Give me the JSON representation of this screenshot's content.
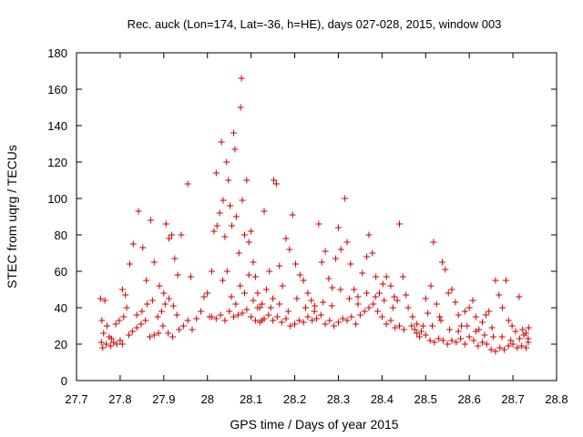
{
  "chart_data": {
    "type": "scatter",
    "title": "Rec. auck (Lon=174, Lat=-36, h=HE), days 027-028, 2015, window 003",
    "xlabel": "GPS time / Days of year 2015",
    "ylabel": "STEC from uqrg / TECUs",
    "xlim": [
      27.7,
      28.8
    ],
    "ylim": [
      0,
      180
    ],
    "xticks": [
      "27.7",
      "27.8",
      "27.9",
      "28",
      "28.1",
      "28.2",
      "28.3",
      "28.4",
      "28.5",
      "28.6",
      "28.7",
      "28.8"
    ],
    "yticks": [
      "0",
      "20",
      "40",
      "60",
      "80",
      "100",
      "120",
      "140",
      "160",
      "180"
    ],
    "grid": false,
    "legend": "none",
    "marker": "+",
    "series": [
      {
        "name": "STEC",
        "color": "#cc0000",
        "points": [
          [
            27.755,
            45
          ],
          [
            27.765,
            44
          ],
          [
            27.758,
            33
          ],
          [
            27.77,
            30
          ],
          [
            27.762,
            26
          ],
          [
            27.775,
            24
          ],
          [
            27.78,
            23
          ],
          [
            27.757,
            21
          ],
          [
            27.768,
            20
          ],
          [
            27.76,
            18
          ],
          [
            27.778,
            19
          ],
          [
            27.785,
            21
          ],
          [
            27.792,
            20
          ],
          [
            27.8,
            22
          ],
          [
            27.805,
            20
          ],
          [
            27.79,
            31
          ],
          [
            27.798,
            33
          ],
          [
            27.808,
            35
          ],
          [
            27.815,
            40
          ],
          [
            27.805,
            50
          ],
          [
            27.812,
            47
          ],
          [
            27.822,
            64
          ],
          [
            27.83,
            75
          ],
          [
            27.842,
            93
          ],
          [
            27.852,
            73
          ],
          [
            27.86,
            55
          ],
          [
            27.87,
            88
          ],
          [
            27.878,
            65
          ],
          [
            27.89,
            52
          ],
          [
            27.9,
            48
          ],
          [
            27.905,
            86
          ],
          [
            27.912,
            78
          ],
          [
            27.918,
            80
          ],
          [
            27.925,
            67
          ],
          [
            27.932,
            58
          ],
          [
            27.94,
            80
          ],
          [
            27.955,
            108
          ],
          [
            27.962,
            57
          ],
          [
            27.82,
            25
          ],
          [
            27.828,
            27
          ],
          [
            27.838,
            29
          ],
          [
            27.848,
            31
          ],
          [
            27.858,
            33
          ],
          [
            27.868,
            24
          ],
          [
            27.878,
            25
          ],
          [
            27.888,
            26
          ],
          [
            27.895,
            38
          ],
          [
            27.903,
            42
          ],
          [
            27.912,
            45
          ],
          [
            27.922,
            41
          ],
          [
            27.93,
            36
          ],
          [
            27.945,
            30
          ],
          [
            27.955,
            33
          ],
          [
            27.965,
            28
          ],
          [
            27.975,
            34
          ],
          [
            27.985,
            38
          ],
          [
            27.992,
            46
          ],
          [
            27.838,
            36
          ],
          [
            27.85,
            38
          ],
          [
            27.862,
            42
          ],
          [
            27.874,
            44
          ],
          [
            27.886,
            35
          ],
          [
            27.898,
            30
          ],
          [
            27.91,
            26
          ],
          [
            27.92,
            24
          ],
          [
            27.935,
            28
          ],
          [
            28.0,
            48
          ],
          [
            28.005,
            35
          ],
          [
            28.01,
            60
          ],
          [
            28.015,
            82
          ],
          [
            28.02,
            114
          ],
          [
            28.022,
            85
          ],
          [
            28.028,
            92
          ],
          [
            28.032,
            131
          ],
          [
            28.036,
            99
          ],
          [
            28.04,
            79
          ],
          [
            28.044,
            120
          ],
          [
            28.048,
            110
          ],
          [
            28.052,
            96
          ],
          [
            28.056,
            85
          ],
          [
            28.06,
            136
          ],
          [
            28.063,
            127
          ],
          [
            28.066,
            90
          ],
          [
            28.072,
            70
          ],
          [
            28.076,
            150
          ],
          [
            28.078,
            166
          ],
          [
            28.08,
            99
          ],
          [
            28.085,
            80
          ],
          [
            28.09,
            110
          ],
          [
            28.095,
            76
          ],
          [
            28.1,
            82
          ],
          [
            28.105,
            65
          ],
          [
            28.11,
            57
          ],
          [
            28.115,
            48
          ],
          [
            28.12,
            40
          ],
          [
            28.125,
            33
          ],
          [
            28.13,
            93
          ],
          [
            28.135,
            50
          ],
          [
            28.142,
            60
          ],
          [
            28.15,
            45
          ],
          [
            28.152,
            110
          ],
          [
            28.158,
            108
          ],
          [
            28.165,
            63
          ],
          [
            28.172,
            52
          ],
          [
            28.18,
            78
          ],
          [
            28.188,
            72
          ],
          [
            28.195,
            91
          ],
          [
            28.202,
            64
          ],
          [
            28.212,
            58
          ],
          [
            28.22,
            55
          ],
          [
            28.23,
            48
          ],
          [
            28.238,
            44
          ],
          [
            28.246,
            41
          ],
          [
            28.255,
            86
          ],
          [
            28.262,
            65
          ],
          [
            28.27,
            71
          ],
          [
            28.278,
            56
          ],
          [
            28.286,
            51
          ],
          [
            28.294,
            67
          ],
          [
            28.3,
            84
          ],
          [
            28.306,
            72
          ],
          [
            28.315,
            100
          ],
          [
            28.32,
            76
          ],
          [
            28.328,
            64
          ],
          [
            28.336,
            50
          ],
          [
            28.345,
            46
          ],
          [
            28.355,
            59
          ],
          [
            28.365,
            68
          ],
          [
            28.37,
            80
          ],
          [
            28.378,
            70
          ],
          [
            28.386,
            57
          ],
          [
            28.394,
            48
          ],
          [
            28.402,
            53
          ],
          [
            28.41,
            57
          ],
          [
            28.42,
            52
          ],
          [
            28.428,
            46
          ],
          [
            28.435,
            44
          ],
          [
            28.44,
            86
          ],
          [
            28.448,
            57
          ],
          [
            28.455,
            47
          ],
          [
            28.01,
            35
          ],
          [
            28.02,
            34
          ],
          [
            28.03,
            36
          ],
          [
            28.04,
            33
          ],
          [
            28.05,
            38
          ],
          [
            28.06,
            35
          ],
          [
            28.07,
            36
          ],
          [
            28.08,
            37
          ],
          [
            28.09,
            39
          ],
          [
            28.1,
            35
          ],
          [
            28.11,
            33
          ],
          [
            28.12,
            32
          ],
          [
            28.13,
            34
          ],
          [
            28.14,
            36
          ],
          [
            28.15,
            33
          ],
          [
            28.16,
            35
          ],
          [
            28.17,
            32
          ],
          [
            28.18,
            34
          ],
          [
            28.19,
            30
          ],
          [
            28.2,
            31
          ],
          [
            28.21,
            33
          ],
          [
            28.22,
            32
          ],
          [
            28.23,
            35
          ],
          [
            28.24,
            33
          ],
          [
            28.25,
            34
          ],
          [
            28.26,
            36
          ],
          [
            28.27,
            31
          ],
          [
            28.28,
            33
          ],
          [
            28.29,
            30
          ],
          [
            28.3,
            32
          ],
          [
            28.31,
            34
          ],
          [
            28.32,
            33
          ],
          [
            28.33,
            35
          ],
          [
            28.34,
            31
          ],
          [
            28.35,
            36
          ],
          [
            28.36,
            38
          ],
          [
            28.37,
            40
          ],
          [
            28.38,
            42
          ],
          [
            28.39,
            38
          ],
          [
            28.4,
            35
          ],
          [
            28.41,
            31
          ],
          [
            28.42,
            33
          ],
          [
            28.43,
            29
          ],
          [
            28.44,
            30
          ],
          [
            28.45,
            28
          ],
          [
            28.035,
            55
          ],
          [
            28.045,
            60
          ],
          [
            28.055,
            46
          ],
          [
            28.065,
            42
          ],
          [
            28.075,
            52
          ],
          [
            28.085,
            48
          ],
          [
            28.095,
            58
          ],
          [
            28.105,
            44
          ],
          [
            28.115,
            40
          ],
          [
            28.125,
            42
          ],
          [
            28.145,
            40
          ],
          [
            28.165,
            42
          ],
          [
            28.185,
            38
          ],
          [
            28.205,
            45
          ],
          [
            28.225,
            40
          ],
          [
            28.245,
            38
          ],
          [
            28.265,
            43
          ],
          [
            28.285,
            41
          ],
          [
            28.305,
            50
          ],
          [
            28.325,
            45
          ],
          [
            28.345,
            42
          ],
          [
            28.365,
            48
          ],
          [
            28.385,
            46
          ],
          [
            28.405,
            44
          ],
          [
            28.425,
            40
          ],
          [
            28.46,
            40
          ],
          [
            28.468,
            30
          ],
          [
            28.475,
            28
          ],
          [
            28.48,
            26
          ],
          [
            28.486,
            24
          ],
          [
            28.494,
            30
          ],
          [
            28.5,
            45
          ],
          [
            28.505,
            37
          ],
          [
            28.512,
            52
          ],
          [
            28.518,
            76
          ],
          [
            28.525,
            42
          ],
          [
            28.532,
            35
          ],
          [
            28.538,
            65
          ],
          [
            28.545,
            61
          ],
          [
            28.552,
            48
          ],
          [
            28.56,
            50
          ],
          [
            28.568,
            43
          ],
          [
            28.575,
            36
          ],
          [
            28.582,
            30
          ],
          [
            28.59,
            38
          ],
          [
            28.6,
            40
          ],
          [
            28.608,
            44
          ],
          [
            28.615,
            35
          ],
          [
            28.622,
            28
          ],
          [
            28.63,
            32
          ],
          [
            28.638,
            36
          ],
          [
            28.645,
            38
          ],
          [
            28.652,
            29
          ],
          [
            28.66,
            55
          ],
          [
            28.668,
            47
          ],
          [
            28.676,
            40
          ],
          [
            28.684,
            55
          ],
          [
            28.69,
            33
          ],
          [
            28.698,
            30
          ],
          [
            28.706,
            27
          ],
          [
            28.714,
            46
          ],
          [
            28.722,
            28
          ],
          [
            28.73,
            26
          ],
          [
            28.736,
            29
          ],
          [
            28.47,
            35
          ],
          [
            28.48,
            31
          ],
          [
            28.49,
            27
          ],
          [
            28.5,
            25
          ],
          [
            28.51,
            22
          ],
          [
            28.52,
            21
          ],
          [
            28.53,
            23
          ],
          [
            28.54,
            22
          ],
          [
            28.55,
            20
          ],
          [
            28.56,
            22
          ],
          [
            28.57,
            21
          ],
          [
            28.58,
            23
          ],
          [
            28.59,
            20
          ],
          [
            28.6,
            24
          ],
          [
            28.61,
            22
          ],
          [
            28.62,
            19
          ],
          [
            28.63,
            21
          ],
          [
            28.64,
            20
          ],
          [
            28.65,
            17
          ],
          [
            28.66,
            16
          ],
          [
            28.67,
            18
          ],
          [
            28.68,
            17
          ],
          [
            28.69,
            19
          ],
          [
            28.7,
            20
          ],
          [
            28.71,
            18
          ],
          [
            28.72,
            19
          ],
          [
            28.73,
            18
          ],
          [
            28.735,
            23
          ],
          [
            28.735,
            21
          ],
          [
            28.515,
            30
          ],
          [
            28.535,
            33
          ],
          [
            28.555,
            28
          ],
          [
            28.575,
            27
          ],
          [
            28.595,
            30
          ],
          [
            28.615,
            27
          ],
          [
            28.635,
            25
          ],
          [
            28.655,
            24
          ],
          [
            28.675,
            24
          ],
          [
            28.695,
            22
          ],
          [
            28.715,
            23
          ],
          [
            28.725,
            25
          ]
        ]
      }
    ]
  }
}
